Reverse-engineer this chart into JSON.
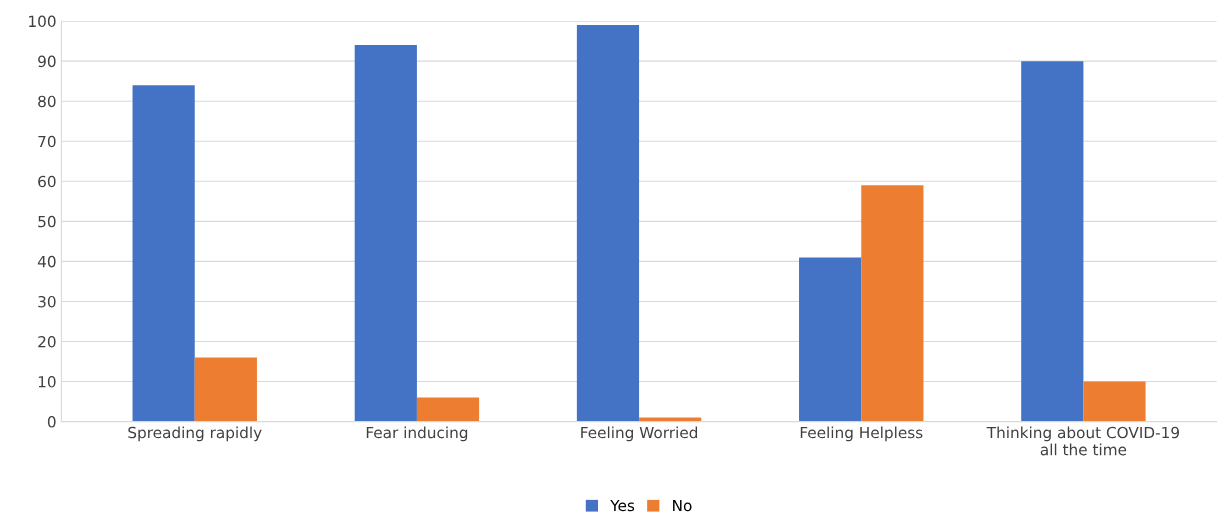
{
  "chart_data": {
    "type": "bar",
    "categories": [
      "Spreading rapidly",
      "Fear inducing",
      "Feeling Worried",
      "Feeling Helpless",
      "Thinking about COVID-19\nall the time"
    ],
    "series": [
      {
        "name": "Yes",
        "color": "#4472c4",
        "values": [
          84,
          94,
          99,
          41,
          90
        ]
      },
      {
        "name": "No",
        "color": "#ed7d31",
        "values": [
          16,
          6,
          1,
          59,
          10
        ]
      }
    ],
    "ylim": [
      0,
      100
    ],
    "yticks": [
      0,
      10,
      20,
      30,
      40,
      50,
      60,
      70,
      80,
      90,
      100
    ],
    "grid": "y",
    "legend": "bottom"
  }
}
